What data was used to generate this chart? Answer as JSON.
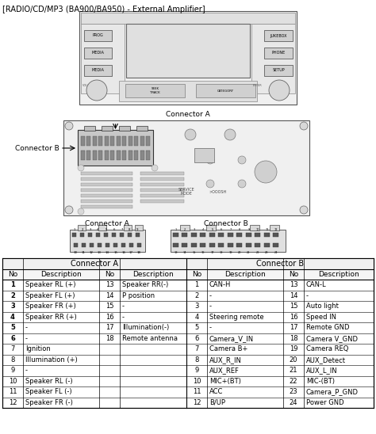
{
  "title": "[RADIO/CD/MP3 (BA900/BA950) - External Amplifier]",
  "title_fontsize": 7.0,
  "bg_color": "#ffffff",
  "connector_a_table": {
    "rows": [
      [
        "1",
        "Speaker RL (+)",
        "13",
        "Speaker RR(-)"
      ],
      [
        "2",
        "Speaker FL (+)",
        "14",
        "P position"
      ],
      [
        "3",
        "Speaker FR (+)",
        "15",
        "-"
      ],
      [
        "4",
        "Speaker RR (+)",
        "16",
        "-"
      ],
      [
        "5",
        "-",
        "17",
        "Illumination(-)"
      ],
      [
        "6",
        "-",
        "18",
        "Remote antenna"
      ],
      [
        "7",
        "Ignition",
        "",
        ""
      ],
      [
        "8",
        "Illumination (+)",
        "",
        ""
      ],
      [
        "9",
        "-",
        "",
        ""
      ],
      [
        "10",
        "Speaker RL (-)",
        "",
        ""
      ],
      [
        "11",
        "Speaker FL (-)",
        "",
        ""
      ],
      [
        "12",
        "Speaker FR (-)",
        "",
        ""
      ]
    ]
  },
  "connector_b_table": {
    "rows": [
      [
        "1",
        "CAN-H",
        "13",
        "CAN-L"
      ],
      [
        "2",
        "-",
        "14",
        "-"
      ],
      [
        "3",
        "-",
        "15",
        "Auto light"
      ],
      [
        "4",
        "Steering remote",
        "16",
        "Speed IN"
      ],
      [
        "5",
        "-",
        "17",
        "Remote GND"
      ],
      [
        "6",
        "Camera_V_IN",
        "18",
        "Camera V_GND"
      ],
      [
        "7",
        "Camera B+",
        "19",
        "Camera REQ"
      ],
      [
        "8",
        "AUX_R_IN",
        "20",
        "AUX_Detect"
      ],
      [
        "9",
        "AUX_REF",
        "21",
        "AUX_L_IN"
      ],
      [
        "10",
        "MIC+(BT)",
        "22",
        "MIC-(BT)"
      ],
      [
        "11",
        "ACC",
        "23",
        "Camera_P_GND"
      ],
      [
        "12",
        "B/UP",
        "24",
        "Power GND"
      ]
    ]
  }
}
